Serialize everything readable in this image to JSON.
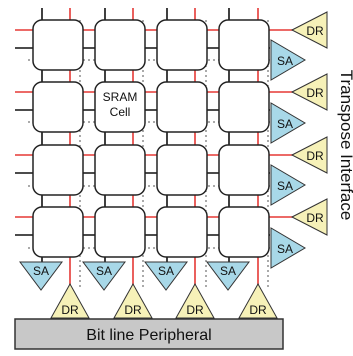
{
  "cell_label_line1": "SRAM",
  "cell_label_line2": "Cell",
  "right_side_label": "Transpose Interface",
  "bottom_bar_label": "Bit line Peripheral",
  "sense_amp_label": "SA",
  "driver_label": "DR",
  "colors": {
    "wire": "#e53935",
    "grid_dots": "#555555",
    "cell_fill": "#ffffff",
    "cell_stroke": "#222222",
    "sense_amp_fill": "#a8d8e8",
    "driver_fill": "#f6f1b8",
    "bar_fill": "#c8c8c8"
  }
}
